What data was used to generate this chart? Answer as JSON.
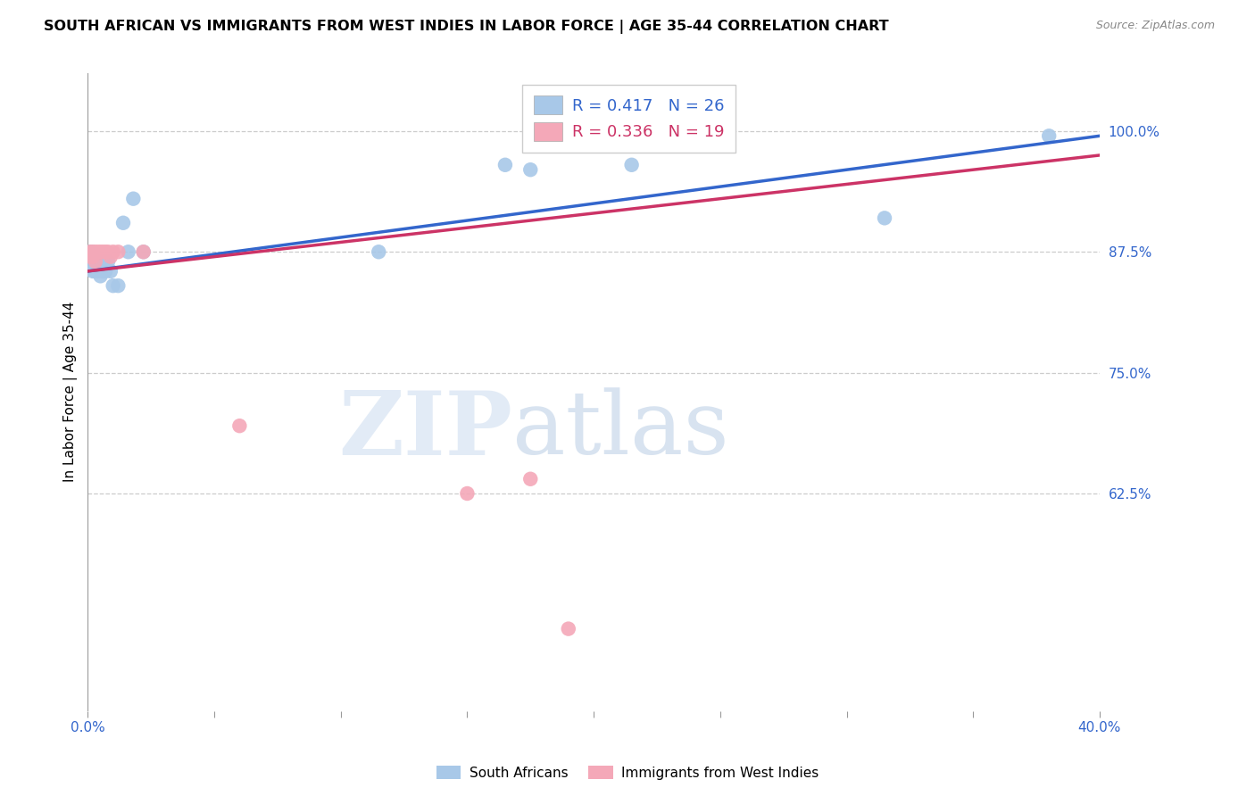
{
  "title": "SOUTH AFRICAN VS IMMIGRANTS FROM WEST INDIES IN LABOR FORCE | AGE 35-44 CORRELATION CHART",
  "source": "Source: ZipAtlas.com",
  "ylabel": "In Labor Force | Age 35-44",
  "y_tick_labels_right": [
    "62.5%",
    "75.0%",
    "87.5%",
    "100.0%"
  ],
  "y_tick_vals": [
    0.625,
    0.75,
    0.875,
    1.0
  ],
  "xlim": [
    0.0,
    0.4
  ],
  "ylim": [
    0.4,
    1.06
  ],
  "blue_R": 0.417,
  "blue_N": 26,
  "pink_R": 0.336,
  "pink_N": 19,
  "blue_color": "#a8c8e8",
  "pink_color": "#f4a8b8",
  "blue_line_color": "#3366cc",
  "pink_line_color": "#cc3366",
  "blue_x": [
    0.001,
    0.001,
    0.002,
    0.002,
    0.003,
    0.003,
    0.004,
    0.005,
    0.005,
    0.006,
    0.006,
    0.007,
    0.008,
    0.009,
    0.01,
    0.012,
    0.014,
    0.016,
    0.018,
    0.022,
    0.115,
    0.165,
    0.175,
    0.215,
    0.315,
    0.38
  ],
  "blue_y": [
    0.875,
    0.865,
    0.875,
    0.855,
    0.865,
    0.855,
    0.855,
    0.865,
    0.85,
    0.865,
    0.855,
    0.855,
    0.865,
    0.855,
    0.84,
    0.84,
    0.905,
    0.875,
    0.93,
    0.875,
    0.875,
    0.965,
    0.96,
    0.965,
    0.91,
    0.995
  ],
  "pink_x": [
    0.001,
    0.001,
    0.002,
    0.002,
    0.003,
    0.003,
    0.004,
    0.005,
    0.006,
    0.007,
    0.008,
    0.009,
    0.01,
    0.012,
    0.022,
    0.06,
    0.15,
    0.175,
    0.19
  ],
  "pink_y": [
    0.875,
    0.87,
    0.875,
    0.87,
    0.875,
    0.865,
    0.875,
    0.875,
    0.875,
    0.875,
    0.875,
    0.87,
    0.875,
    0.875,
    0.875,
    0.695,
    0.625,
    0.64,
    0.485
  ],
  "blue_trend_x": [
    0.0,
    0.4
  ],
  "blue_trend_y": [
    0.855,
    0.995
  ],
  "pink_trend_x": [
    0.0,
    0.4
  ],
  "pink_trend_y": [
    0.855,
    0.975
  ],
  "watermark_zip": "ZIP",
  "watermark_atlas": "atlas",
  "background_color": "#ffffff",
  "grid_color": "#cccccc",
  "axis_color": "#3366cc",
  "title_fontsize": 11.5,
  "label_fontsize": 11,
  "tick_fontsize": 11,
  "legend_fontsize": 13
}
